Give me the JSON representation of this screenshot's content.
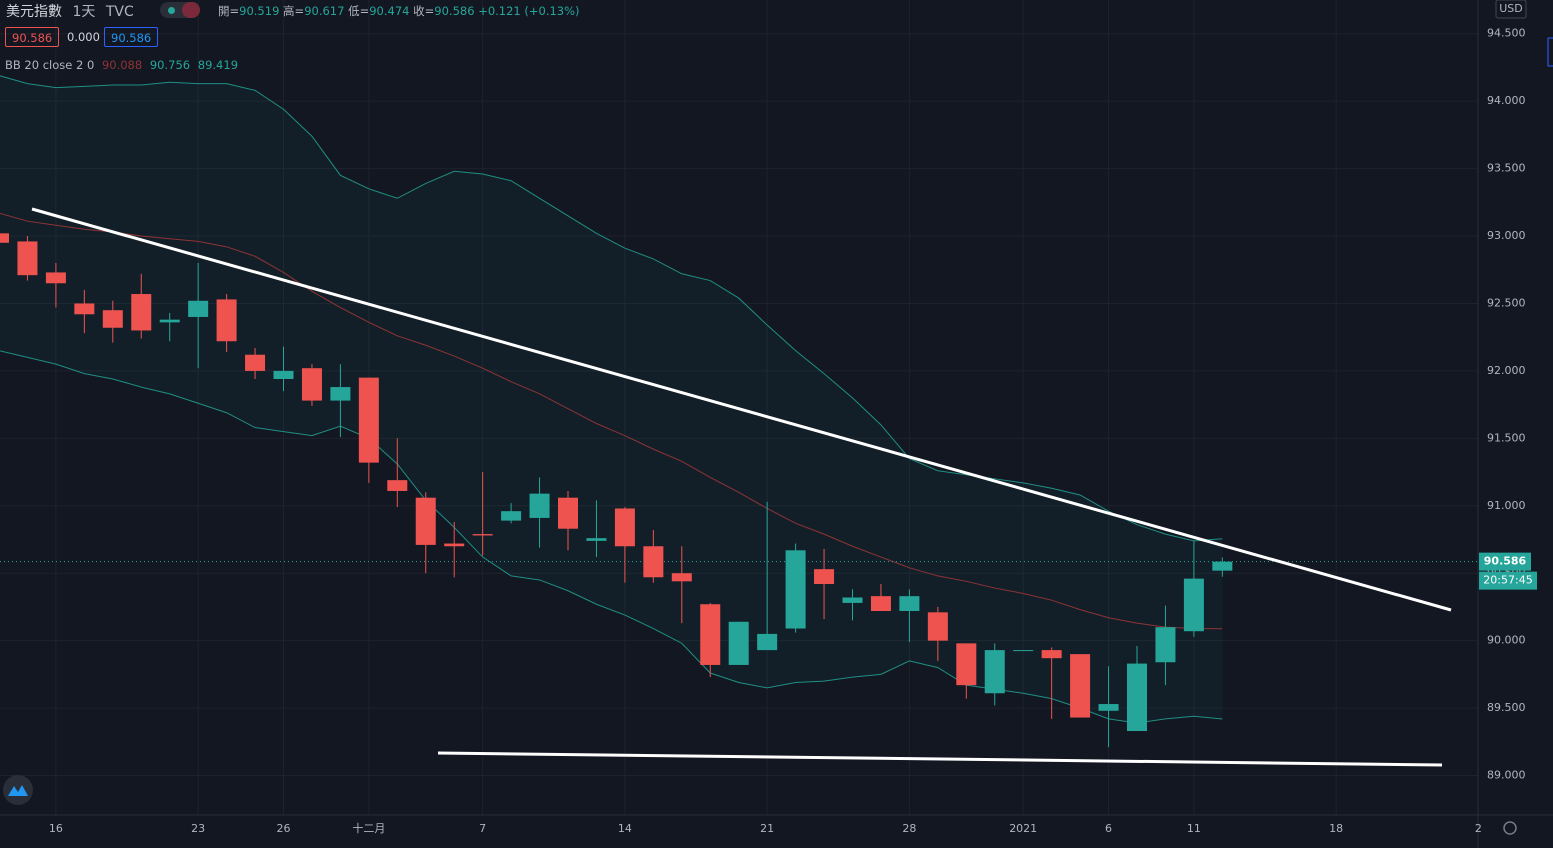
{
  "chart_data": {
    "type": "candlestick",
    "title": "美元指數",
    "interval": "1天",
    "source": "TVC",
    "legend": {
      "open_label": "開=",
      "open": "90.519",
      "high_label": "高=",
      "high": "90.617",
      "low_label": "低=",
      "low": "90.474",
      "close_label": "收=",
      "close": "90.586",
      "change": "+0.121 (+0.13%)"
    },
    "price_boxes": {
      "bid": "90.586",
      "spread": "0.000",
      "ask": "90.586"
    },
    "indicator": {
      "name": "BB 20 close 2 0",
      "basis_value": "90.088",
      "upper_value": "90.756",
      "lower_value": "89.419"
    },
    "currency": "USD",
    "countdown": "20:57:45",
    "last_price": 90.586,
    "up_color": "#26a69a",
    "down_color": "#ef5350",
    "band_color": "#1f8f84",
    "basis_color": "#8e3434",
    "grid": true,
    "ylim": [
      88.7,
      94.75
    ],
    "yticks": [
      {
        "value": 89,
        "label": "89.000"
      },
      {
        "value": 89.5,
        "label": "89.500"
      },
      {
        "value": 90,
        "label": "90.000"
      },
      {
        "value": 90.5,
        "label": "90.500"
      },
      {
        "value": 91,
        "label": "91.000"
      },
      {
        "value": 91.5,
        "label": "91.500"
      },
      {
        "value": 92,
        "label": "92.000"
      },
      {
        "value": 92.5,
        "label": "92.500"
      },
      {
        "value": 93,
        "label": "93.000"
      },
      {
        "value": 93.5,
        "label": "93.500"
      },
      {
        "value": 94,
        "label": "94.000"
      },
      {
        "value": 94.5,
        "label": "94.500"
      }
    ],
    "categories": [
      null,
      null,
      "16",
      null,
      null,
      null,
      null,
      "23",
      null,
      null,
      "26",
      null,
      null,
      "十二月",
      null,
      null,
      null,
      "7",
      null,
      null,
      null,
      null,
      "14",
      null,
      null,
      null,
      null,
      "21",
      null,
      null,
      null,
      null,
      "28",
      null,
      null,
      null,
      "2021",
      null,
      null,
      "6",
      null,
      null,
      "11",
      null,
      null,
      null,
      null,
      "18",
      null,
      null,
      null,
      null,
      "2"
    ],
    "open": [
      93.02,
      92.96,
      92.73,
      92.5,
      92.45,
      92.57,
      92.36,
      92.4,
      92.53,
      92.12,
      91.94,
      92.02,
      91.78,
      91.95,
      91.19,
      91.06,
      90.72,
      90.79,
      90.89,
      90.91,
      91.06,
      90.74,
      90.98,
      90.7,
      90.5,
      90.27,
      89.82,
      89.93,
      90.09,
      90.53,
      90.28,
      90.33,
      90.22,
      90.21,
      89.98,
      89.61,
      89.93,
      89.93,
      89.9,
      89.48,
      89.33,
      89.84,
      90.07,
      90.519,
      null,
      null,
      null,
      null,
      null,
      null,
      null,
      null,
      null
    ],
    "high": [
      93.05,
      93.0,
      92.8,
      92.6,
      92.52,
      92.72,
      92.43,
      92.8,
      92.57,
      92.17,
      92.18,
      92.05,
      92.05,
      91.95,
      91.5,
      91.1,
      90.88,
      91.25,
      91.02,
      91.21,
      91.11,
      91.04,
      90.99,
      90.82,
      90.7,
      90.28,
      90.14,
      91.03,
      90.72,
      90.68,
      90.38,
      90.42,
      90.38,
      90.25,
      89.98,
      89.98,
      89.93,
      89.95,
      89.9,
      89.81,
      89.96,
      90.26,
      90.74,
      90.617,
      null,
      null,
      null,
      null,
      null,
      null,
      null,
      null,
      null
    ],
    "low": [
      92.93,
      92.67,
      92.47,
      92.28,
      92.21,
      92.24,
      92.22,
      92.02,
      92.14,
      91.94,
      91.85,
      91.74,
      91.51,
      91.17,
      90.99,
      90.5,
      90.47,
      90.63,
      90.87,
      90.69,
      90.67,
      90.62,
      90.43,
      90.43,
      90.13,
      89.73,
      89.82,
      89.93,
      90.06,
      90.16,
      90.15,
      90.22,
      89.99,
      89.85,
      89.57,
      89.52,
      89.93,
      89.42,
      89.43,
      89.21,
      89.33,
      89.67,
      90.03,
      90.474,
      null,
      null,
      null,
      null,
      null,
      null,
      null,
      null,
      null
    ],
    "close": [
      92.95,
      92.71,
      92.65,
      92.42,
      92.32,
      92.3,
      92.38,
      92.52,
      92.22,
      92.0,
      92.0,
      91.78,
      91.88,
      91.32,
      91.11,
      90.71,
      90.7,
      90.78,
      90.96,
      91.09,
      90.83,
      90.76,
      90.7,
      90.47,
      90.44,
      89.82,
      90.14,
      90.05,
      90.67,
      90.42,
      90.32,
      90.22,
      90.33,
      90.0,
      89.67,
      89.93,
      89.93,
      89.87,
      89.43,
      89.53,
      89.83,
      90.1,
      90.46,
      90.586,
      null,
      null,
      null,
      null,
      null,
      null,
      null,
      null,
      null
    ],
    "bb_upper": [
      94.19,
      94.13,
      94.1,
      94.11,
      94.12,
      94.12,
      94.14,
      94.13,
      94.13,
      94.08,
      93.94,
      93.74,
      93.45,
      93.35,
      93.28,
      93.39,
      93.48,
      93.46,
      93.41,
      93.28,
      93.15,
      93.02,
      92.91,
      92.83,
      92.72,
      92.67,
      92.54,
      92.34,
      92.15,
      91.98,
      91.8,
      91.6,
      91.35,
      91.26,
      91.23,
      91.2,
      91.17,
      91.13,
      91.08,
      90.96,
      90.86,
      90.79,
      90.74,
      90.756,
      null,
      null,
      null,
      null,
      null,
      null,
      null,
      null,
      null
    ],
    "bb_basis": [
      93.17,
      93.11,
      93.08,
      93.05,
      93.03,
      93.0,
      92.98,
      92.96,
      92.92,
      92.85,
      92.73,
      92.59,
      92.47,
      92.36,
      92.26,
      92.19,
      92.11,
      92.02,
      91.92,
      91.83,
      91.72,
      91.61,
      91.52,
      91.42,
      91.33,
      91.21,
      91.1,
      90.98,
      90.87,
      90.79,
      90.7,
      90.62,
      90.54,
      90.48,
      90.44,
      90.39,
      90.35,
      90.3,
      90.23,
      90.17,
      90.13,
      90.1,
      90.09,
      90.088,
      null,
      null,
      null,
      null,
      null,
      null,
      null,
      null,
      null
    ],
    "bb_lower": [
      92.15,
      92.1,
      92.05,
      91.98,
      91.94,
      91.88,
      91.83,
      91.76,
      91.69,
      91.58,
      91.55,
      91.52,
      91.59,
      91.5,
      91.31,
      91.04,
      90.84,
      90.62,
      90.48,
      90.45,
      90.37,
      90.27,
      90.19,
      90.09,
      89.98,
      89.76,
      89.69,
      89.65,
      89.69,
      89.7,
      89.73,
      89.75,
      89.85,
      89.8,
      89.67,
      89.64,
      89.61,
      89.57,
      89.5,
      89.42,
      89.39,
      89.42,
      89.44,
      89.419,
      null,
      null,
      null,
      null,
      null,
      null,
      null,
      null,
      null
    ]
  }
}
